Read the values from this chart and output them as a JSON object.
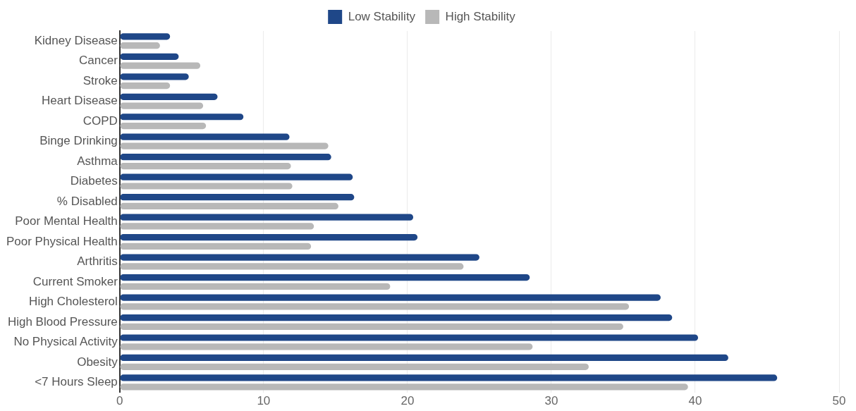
{
  "chart_data": {
    "type": "bar",
    "orientation": "horizontal",
    "categories": [
      "Kidney Disease",
      "Cancer",
      "Stroke",
      "Heart Disease",
      "COPD",
      "Binge Drinking",
      "Asthma",
      "Diabetes",
      "% Disabled",
      "Poor Mental Health",
      "Poor Physical Health",
      "Arthritis",
      "Current Smoker",
      "High Cholesterol",
      "High Blood Pressure",
      "No Physical Activity",
      "Obesity",
      "<7 Hours Sleep"
    ],
    "series": [
      {
        "name": "Low Stability",
        "color": "#1f4788",
        "values": [
          3.5,
          4.1,
          4.8,
          6.8,
          8.6,
          11.8,
          14.7,
          16.2,
          16.3,
          20.4,
          20.7,
          25.0,
          28.5,
          37.6,
          38.4,
          40.2,
          42.3,
          45.7
        ]
      },
      {
        "name": "High Stability",
        "color": "#b8b8b8",
        "values": [
          2.8,
          5.6,
          3.5,
          5.8,
          6.0,
          14.5,
          11.9,
          12.0,
          15.2,
          13.5,
          13.3,
          23.9,
          18.8,
          35.4,
          35.0,
          28.7,
          32.6,
          39.5
        ]
      }
    ],
    "xlim": [
      0,
      50
    ],
    "xticks": [
      0,
      10,
      20,
      30,
      40,
      50
    ],
    "grid": "x",
    "legend": "top"
  }
}
